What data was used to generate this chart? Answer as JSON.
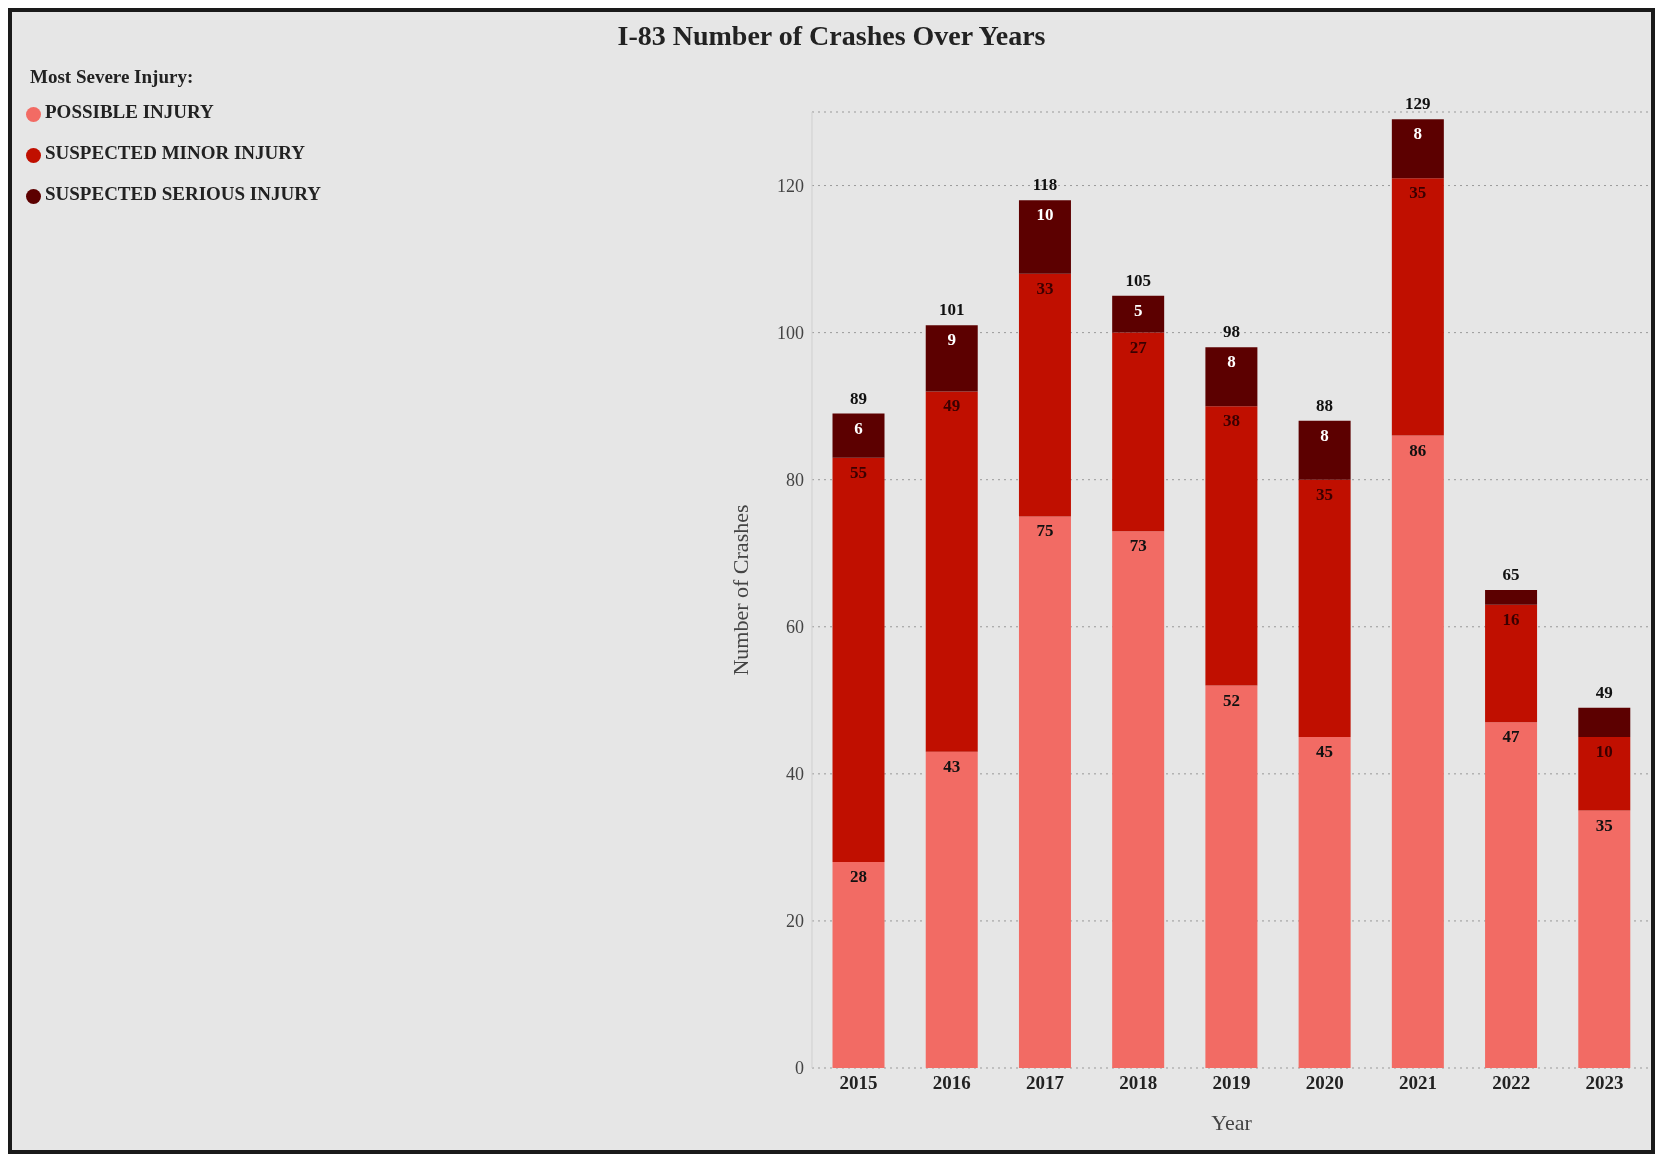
{
  "chart_data": {
    "type": "bar",
    "title": "I-83 Number of Crashes Over Years",
    "xlabel": "Year",
    "ylabel": "Number of Crashes",
    "legend_title": "Most Severe Injury:",
    "categories": [
      "2015",
      "2016",
      "2017",
      "2018",
      "2019",
      "2020",
      "2021",
      "2022",
      "2023"
    ],
    "series": [
      {
        "name": "POSSIBLE INJURY",
        "color": "#f26b64",
        "values": [
          28,
          43,
          75,
          73,
          52,
          45,
          86,
          47,
          35
        ],
        "value_labels": [
          "28",
          "43",
          "75",
          "73",
          "52",
          "45",
          "86",
          "47",
          "35"
        ]
      },
      {
        "name": "SUSPECTED MINOR INJURY",
        "color": "#c00f00",
        "values": [
          55,
          49,
          33,
          27,
          38,
          35,
          35,
          16,
          10
        ],
        "value_labels": [
          "55",
          "49",
          "33",
          "27",
          "38",
          "35",
          "35",
          "16",
          "10"
        ]
      },
      {
        "name": "SUSPECTED SERIOUS INJURY",
        "color": "#5c0000",
        "values": [
          6,
          9,
          10,
          5,
          8,
          8,
          8,
          2,
          4
        ],
        "value_labels": [
          "6",
          "9",
          "10",
          "5",
          "8",
          "8",
          "8",
          null,
          null
        ]
      }
    ],
    "totals": [
      "89",
      "101",
      "118",
      "105",
      "98",
      "88",
      "129",
      "65",
      "49"
    ],
    "stacked": true,
    "ylim": [
      0,
      130
    ],
    "yticks": [
      0,
      20,
      40,
      60,
      80,
      100,
      120
    ],
    "grid": "y",
    "legend": "top left"
  }
}
